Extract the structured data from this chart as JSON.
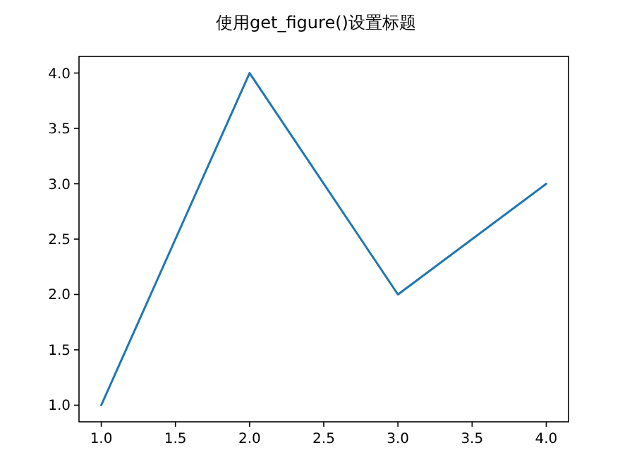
{
  "chart_data": {
    "type": "line",
    "title": "使用get_figure()设置标题",
    "x": [
      1,
      2,
      3,
      4
    ],
    "series": [
      {
        "color": "#1f77b4",
        "values": [
          1,
          4,
          2,
          3
        ]
      }
    ],
    "xlim": [
      0.85,
      4.15
    ],
    "ylim": [
      0.85,
      4.15
    ],
    "xticks": [
      {
        "value": 1,
        "label": "1.0"
      },
      {
        "value": 1.5,
        "label": "1.5"
      },
      {
        "value": 2,
        "label": "2.0"
      },
      {
        "value": 2.5,
        "label": "2.5"
      },
      {
        "value": 3,
        "label": "3.0"
      },
      {
        "value": 3.5,
        "label": "3.5"
      },
      {
        "value": 4,
        "label": "4.0"
      }
    ],
    "yticks": [
      {
        "value": 1,
        "label": "1.0"
      },
      {
        "value": 1.5,
        "label": "1.5"
      },
      {
        "value": 2,
        "label": "2.0"
      },
      {
        "value": 2.5,
        "label": "2.5"
      },
      {
        "value": 3,
        "label": "3.0"
      },
      {
        "value": 3.5,
        "label": "3.5"
      },
      {
        "value": 4,
        "label": "4.0"
      }
    ],
    "grid": false
  }
}
